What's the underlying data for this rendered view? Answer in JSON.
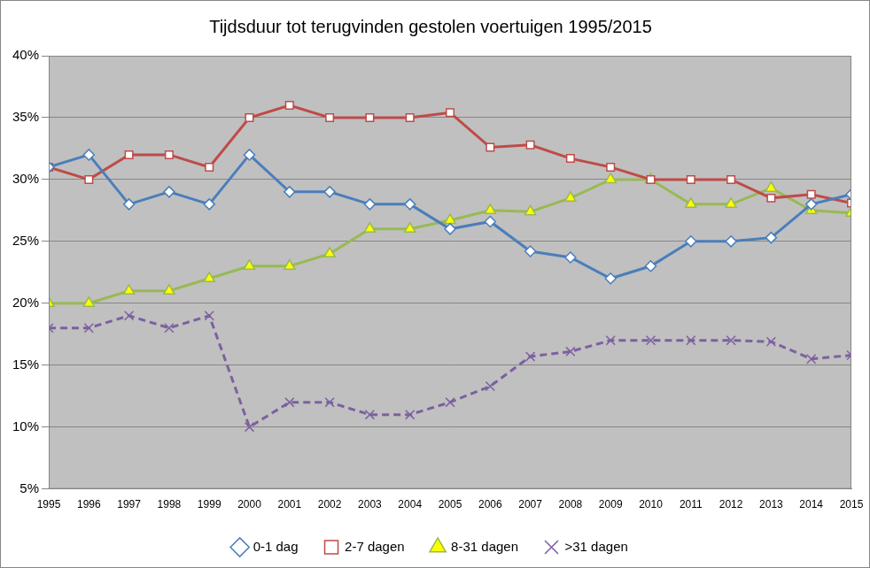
{
  "chart_data": {
    "type": "line",
    "title": "Tijdsduur tot terugvinden gestolen voertuigen 1995/2015",
    "categories": [
      "1995",
      "1996",
      "1997",
      "1998",
      "1999",
      "2000",
      "2001",
      "2002",
      "2003",
      "2004",
      "2005",
      "2006",
      "2007",
      "2008",
      "2009",
      "2010",
      "2011",
      "2012",
      "2013",
      "2014",
      "2015"
    ],
    "series": [
      {
        "name": "0-1 dag",
        "color": "#4a7ebb",
        "marker": "diamond",
        "line_style": "solid",
        "values": [
          31,
          32,
          28,
          29,
          28,
          32,
          29,
          29,
          28,
          28,
          26,
          26.6,
          24.2,
          23.7,
          22,
          23,
          25,
          25,
          25.3,
          28,
          28.8
        ]
      },
      {
        "name": "2-7 dagen",
        "color": "#be4b48",
        "marker": "square",
        "line_style": "solid",
        "values": [
          31,
          30,
          32,
          32,
          31,
          35,
          36,
          35,
          35,
          35,
          35.4,
          32.6,
          32.8,
          31.7,
          31,
          30,
          30,
          30,
          28.5,
          28.8,
          28.1
        ]
      },
      {
        "name": "8-31 dagen",
        "color": "#98b954",
        "marker": "triangle",
        "line_style": "solid",
        "values": [
          20,
          20,
          21,
          21,
          22,
          23,
          23,
          24,
          26,
          26,
          26.7,
          27.5,
          27.4,
          28.5,
          30,
          30,
          28,
          28,
          29.3,
          27.5,
          27.3
        ]
      },
      {
        "name": ">31 dagen",
        "color": "#7d60a0",
        "marker": "x",
        "line_style": "dashed",
        "values": [
          18,
          18,
          19,
          18,
          19,
          10,
          12,
          12,
          11,
          11,
          12,
          13.3,
          15.7,
          16.1,
          17,
          17,
          17,
          17,
          16.9,
          15.5,
          15.8
        ]
      }
    ],
    "ylim": [
      5,
      40
    ],
    "yticks": [
      {
        "value": 5,
        "label": "5%"
      },
      {
        "value": 10,
        "label": "10%"
      },
      {
        "value": 15,
        "label": "15%"
      },
      {
        "value": 20,
        "label": "20%"
      },
      {
        "value": 25,
        "label": "25%"
      },
      {
        "value": 30,
        "label": "30%"
      },
      {
        "value": 35,
        "label": "35%"
      },
      {
        "value": 40,
        "label": "40%"
      }
    ],
    "grid": true,
    "legend": "bottom"
  }
}
